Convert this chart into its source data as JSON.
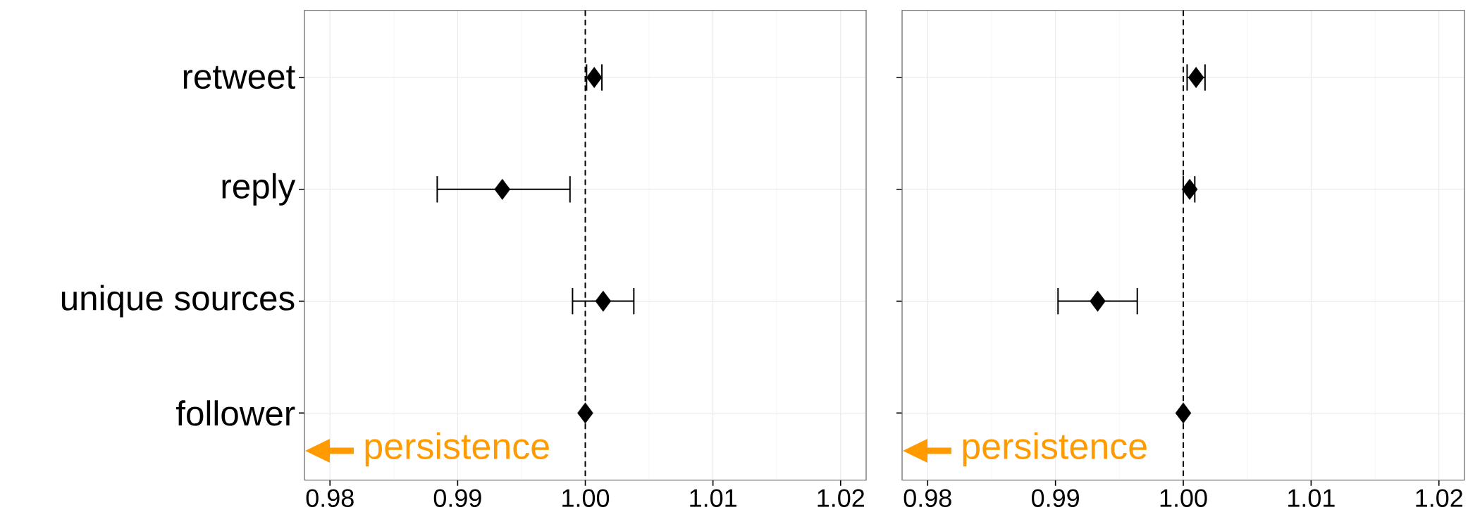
{
  "chart_data": [
    {
      "type": "scatter",
      "orientation": "horizontal",
      "categories": [
        "retweet",
        "reply",
        "unique sources",
        "follower"
      ],
      "values": [
        1.0007,
        0.9935,
        1.0014,
        1.0
      ],
      "errors": [
        [
          1.0001,
          1.0013
        ],
        [
          0.9884,
          0.9988
        ],
        [
          0.999,
          1.0038
        ],
        null
      ],
      "color": "#000000",
      "marker": "diamond",
      "xlim": [
        0.978,
        1.022
      ],
      "xticks": [
        0.98,
        0.99,
        {
          "value": 1.0,
          "label": "1.00"
        },
        1.01,
        1.02
      ],
      "ref_lines": [
        {
          "axis": "x",
          "value": 1.0,
          "line_style": "dashed"
        }
      ],
      "grid": true,
      "annotations": [
        "persistence"
      ]
    },
    {
      "type": "scatter",
      "orientation": "horizontal",
      "categories": [
        null,
        null,
        null,
        null
      ],
      "values": [
        1.001,
        1.0005,
        0.9933,
        1.0
      ],
      "errors": [
        [
          1.0003,
          1.0017
        ],
        [
          1.0,
          1.0009
        ],
        [
          0.9902,
          0.9964
        ],
        null
      ],
      "color": "#000000",
      "marker": "diamond",
      "xlim": [
        0.978,
        1.022
      ],
      "xticks": [
        0.98,
        0.99,
        {
          "value": 1.0,
          "label": "1.00"
        },
        1.01,
        1.02
      ],
      "ref_lines": [
        {
          "axis": "x",
          "value": 1.0,
          "line_style": "dashed"
        }
      ],
      "grid": true,
      "annotations": [
        "persistence"
      ],
      "tick_labels": "x"
    }
  ]
}
